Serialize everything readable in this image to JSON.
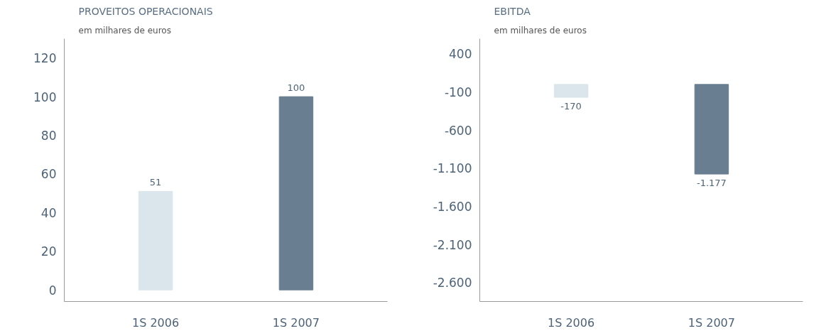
{
  "chart_data": [
    {
      "type": "bar",
      "title": "PROVEITOS OPERACIONAIS",
      "subtitle": "em milhares de euros",
      "categories": [
        "1S 2006",
        "1S 2007"
      ],
      "values": [
        51,
        100
      ],
      "colors": [
        "#dbe5ec",
        "#6a7e91"
      ],
      "ylim": [
        -6,
        130
      ],
      "yticks": [
        0,
        20,
        40,
        60,
        80,
        100,
        120
      ],
      "data_labels": true,
      "grid": false
    },
    {
      "type": "bar",
      "title": "EBITDA",
      "subtitle": "em milhares de euros",
      "categories": [
        "1S 2006",
        "1S 2007"
      ],
      "values": [
        -170,
        -1177
      ],
      "value_labels": [
        "-170",
        "-1.177"
      ],
      "colors": [
        "#dbe5ec",
        "#6a7e91"
      ],
      "ylim": [
        -2850,
        600
      ],
      "yticks": [
        {
          "value": 400,
          "label": "400"
        },
        {
          "value": -100,
          "label": "-100"
        },
        {
          "value": -600,
          "label": "-600"
        },
        {
          "value": -1100,
          "label": "-1.100"
        },
        {
          "value": -1600,
          "label": "-1.600"
        },
        {
          "value": -2100,
          "label": "-2.100"
        },
        {
          "value": -2600,
          "label": "-2.600"
        }
      ],
      "grid": false
    }
  ]
}
